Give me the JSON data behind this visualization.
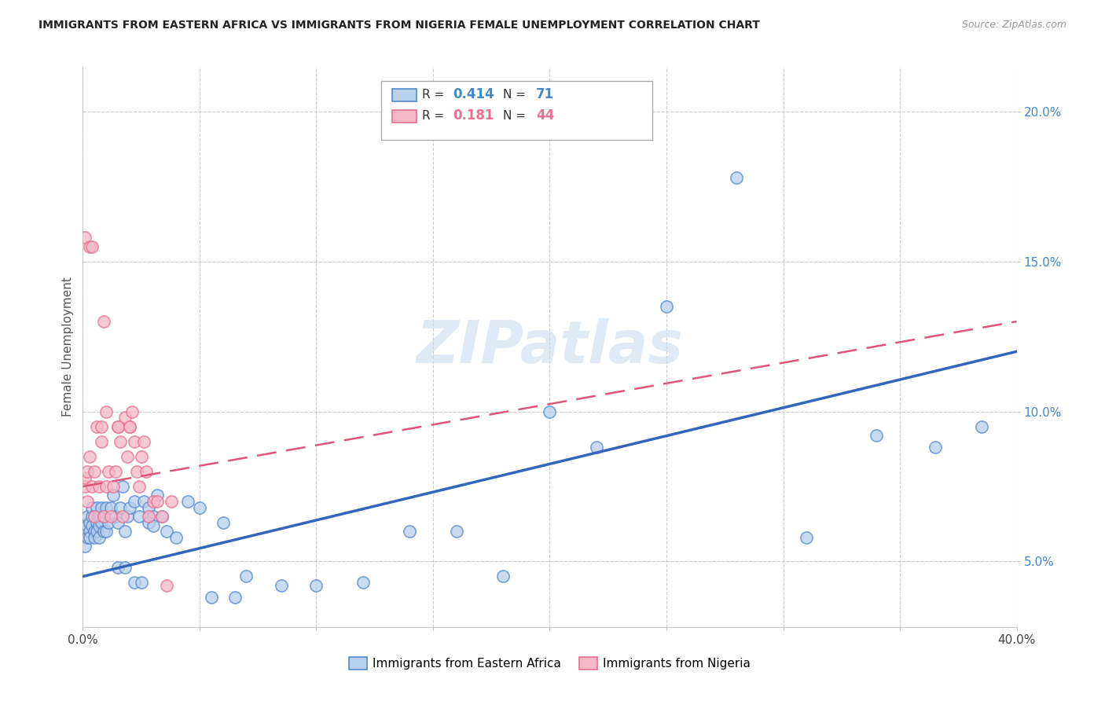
{
  "title": "IMMIGRANTS FROM EASTERN AFRICA VS IMMIGRANTS FROM NIGERIA FEMALE UNEMPLOYMENT CORRELATION CHART",
  "source": "Source: ZipAtlas.com",
  "ylabel": "Female Unemployment",
  "xlim": [
    0.0,
    0.4
  ],
  "ylim": [
    0.028,
    0.215
  ],
  "xticks": [
    0.0,
    0.05,
    0.1,
    0.15,
    0.2,
    0.25,
    0.3,
    0.35,
    0.4
  ],
  "xticklabels": [
    "0.0%",
    "",
    "",
    "",
    "",
    "",
    "",
    "",
    "40.0%"
  ],
  "yticks": [
    0.05,
    0.1,
    0.15,
    0.2
  ],
  "yticklabels": [
    "5.0%",
    "10.0%",
    "15.0%",
    "20.0%"
  ],
  "blue_fill": "#b8d0ec",
  "blue_edge": "#5588cc",
  "pink_fill": "#f5b8c8",
  "pink_edge": "#e87090",
  "blue_line": "#3366bb",
  "pink_line": "#dd5577",
  "watermark": "ZIPatlas",
  "legend_R1": "0.414",
  "legend_N1": "71",
  "legend_R2": "0.181",
  "legend_N2": "44",
  "series1_label": "Immigrants from Eastern Africa",
  "series2_label": "Immigrants from Nigeria",
  "blue_x": [
    0.001,
    0.001,
    0.002,
    0.002,
    0.002,
    0.003,
    0.003,
    0.003,
    0.004,
    0.004,
    0.004,
    0.005,
    0.005,
    0.005,
    0.006,
    0.006,
    0.006,
    0.007,
    0.007,
    0.007,
    0.008,
    0.008,
    0.009,
    0.009,
    0.01,
    0.01,
    0.011,
    0.012,
    0.013,
    0.014,
    0.015,
    0.016,
    0.017,
    0.018,
    0.019,
    0.02,
    0.022,
    0.024,
    0.026,
    0.028,
    0.03,
    0.032,
    0.034,
    0.036,
    0.04,
    0.045,
    0.05,
    0.06,
    0.07,
    0.085,
    0.1,
    0.12,
    0.14,
    0.16,
    0.18,
    0.2,
    0.22,
    0.25,
    0.28,
    0.31,
    0.34,
    0.365,
    0.385,
    0.015,
    0.018,
    0.022,
    0.025,
    0.028,
    0.03,
    0.055,
    0.065
  ],
  "blue_y": [
    0.06,
    0.055,
    0.065,
    0.058,
    0.062,
    0.06,
    0.063,
    0.058,
    0.065,
    0.062,
    0.068,
    0.06,
    0.065,
    0.058,
    0.063,
    0.06,
    0.068,
    0.062,
    0.065,
    0.058,
    0.063,
    0.068,
    0.06,
    0.065,
    0.068,
    0.06,
    0.063,
    0.068,
    0.072,
    0.065,
    0.063,
    0.068,
    0.075,
    0.06,
    0.065,
    0.068,
    0.07,
    0.065,
    0.07,
    0.068,
    0.065,
    0.072,
    0.065,
    0.06,
    0.058,
    0.07,
    0.068,
    0.063,
    0.045,
    0.042,
    0.042,
    0.043,
    0.06,
    0.06,
    0.045,
    0.1,
    0.088,
    0.135,
    0.178,
    0.058,
    0.092,
    0.088,
    0.095,
    0.048,
    0.048,
    0.043,
    0.043,
    0.063,
    0.062,
    0.038,
    0.038
  ],
  "pink_x": [
    0.001,
    0.001,
    0.001,
    0.002,
    0.002,
    0.003,
    0.003,
    0.004,
    0.004,
    0.005,
    0.005,
    0.006,
    0.007,
    0.008,
    0.009,
    0.009,
    0.01,
    0.011,
    0.012,
    0.013,
    0.014,
    0.015,
    0.016,
    0.017,
    0.018,
    0.019,
    0.02,
    0.021,
    0.022,
    0.023,
    0.024,
    0.025,
    0.026,
    0.027,
    0.028,
    0.03,
    0.032,
    0.034,
    0.036,
    0.038,
    0.008,
    0.01,
    0.015,
    0.02
  ],
  "pink_y": [
    0.075,
    0.078,
    0.158,
    0.07,
    0.08,
    0.085,
    0.155,
    0.155,
    0.075,
    0.08,
    0.065,
    0.095,
    0.075,
    0.09,
    0.13,
    0.065,
    0.075,
    0.08,
    0.065,
    0.075,
    0.08,
    0.095,
    0.09,
    0.065,
    0.098,
    0.085,
    0.095,
    0.1,
    0.09,
    0.08,
    0.075,
    0.085,
    0.09,
    0.08,
    0.065,
    0.07,
    0.07,
    0.065,
    0.042,
    0.07,
    0.095,
    0.1,
    0.095,
    0.095
  ]
}
